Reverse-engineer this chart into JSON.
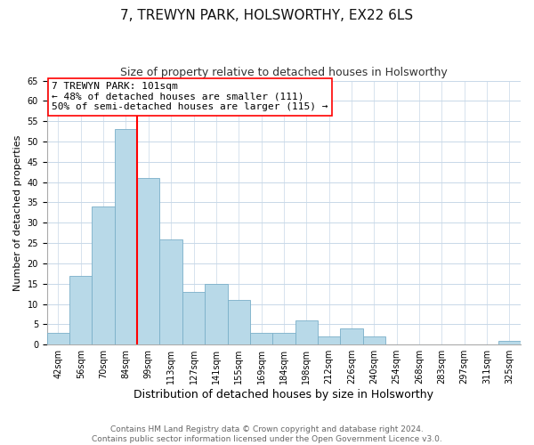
{
  "title": "7, TREWYN PARK, HOLSWORTHY, EX22 6LS",
  "subtitle": "Size of property relative to detached houses in Holsworthy",
  "xlabel": "Distribution of detached houses by size in Holsworthy",
  "ylabel": "Number of detached properties",
  "bin_labels": [
    "42sqm",
    "56sqm",
    "70sqm",
    "84sqm",
    "99sqm",
    "113sqm",
    "127sqm",
    "141sqm",
    "155sqm",
    "169sqm",
    "184sqm",
    "198sqm",
    "212sqm",
    "226sqm",
    "240sqm",
    "254sqm",
    "268sqm",
    "283sqm",
    "297sqm",
    "311sqm",
    "325sqm"
  ],
  "bar_heights": [
    3,
    17,
    34,
    53,
    41,
    26,
    13,
    15,
    11,
    3,
    3,
    6,
    2,
    4,
    2,
    0,
    0,
    0,
    0,
    0,
    1
  ],
  "bar_color": "#b8d9e8",
  "bar_edge_color": "#7aafc8",
  "vline_color": "red",
  "vline_bar_index": 4,
  "annotation_title": "7 TREWYN PARK: 101sqm",
  "annotation_line1": "← 48% of detached houses are smaller (111)",
  "annotation_line2": "50% of semi-detached houses are larger (115) →",
  "ylim": [
    0,
    65
  ],
  "yticks": [
    0,
    5,
    10,
    15,
    20,
    25,
    30,
    35,
    40,
    45,
    50,
    55,
    60,
    65
  ],
  "footer_line1": "Contains HM Land Registry data © Crown copyright and database right 2024.",
  "footer_line2": "Contains public sector information licensed under the Open Government Licence v3.0.",
  "title_fontsize": 11,
  "subtitle_fontsize": 9,
  "xlabel_fontsize": 9,
  "ylabel_fontsize": 8,
  "tick_fontsize": 7,
  "annotation_fontsize": 8,
  "footer_fontsize": 6.5
}
